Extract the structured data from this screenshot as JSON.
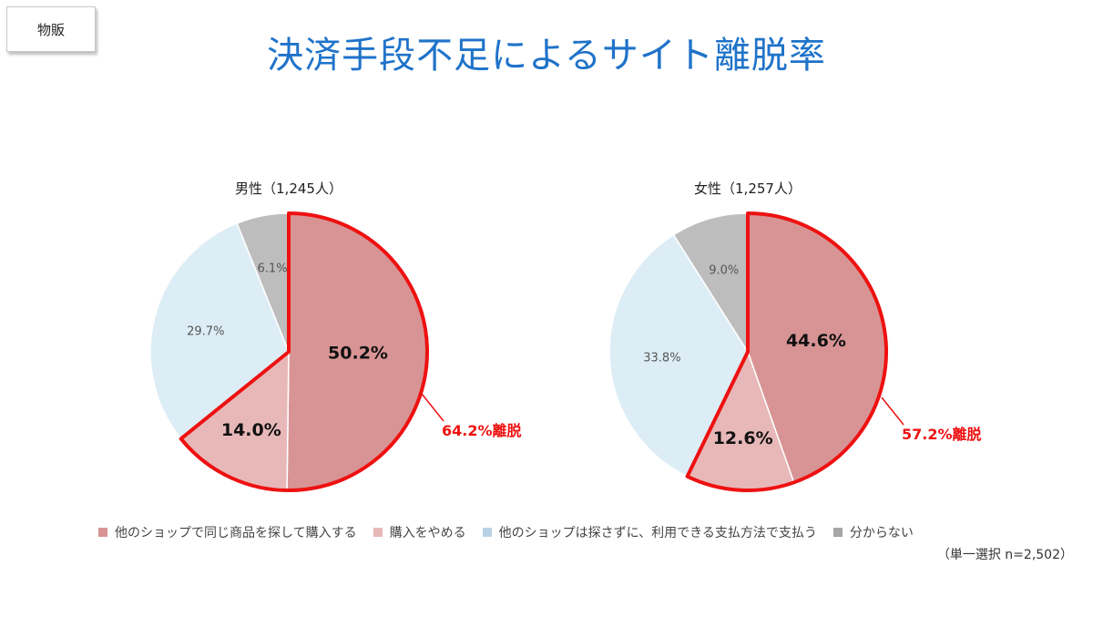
{
  "tag_label": "物販",
  "title": "決済手段不足によるサイト離脱率",
  "note": "（単一選択 n=2,502）",
  "colors": {
    "accent_title": "#1f73c9",
    "highlight": "#ee1111"
  },
  "legend": [
    {
      "label": "他のショップで同じ商品を探して購入する",
      "color": "#d89494"
    },
    {
      "label": "購入をやめる",
      "color": "#e8b8b8"
    },
    {
      "label": "他のショップは探さずに、利用できる支払方法で支払う",
      "color": "#b9d3e6"
    },
    {
      "label": "分からない",
      "color": "#a6a6a6"
    }
  ],
  "chart_data": [
    {
      "type": "pie",
      "title": "男性（1,245人）",
      "labels": [
        "他のショップで同じ商品を探して購入する",
        "購入をやめる",
        "他のショップは探さずに、利用できる支払方法で支払う",
        "分からない"
      ],
      "values": [
        50.2,
        14.0,
        29.7,
        6.1
      ],
      "value_labels": [
        "50.2%",
        "14.0%",
        "29.7%",
        "6.1%"
      ],
      "colors": [
        "#d89494",
        "#e8b8b8",
        "#dcedf5",
        "#bdbdbd"
      ],
      "highlighted_slices": [
        0,
        1
      ],
      "callout": "64.2%離脱"
    },
    {
      "type": "pie",
      "title": "女性（1,257人）",
      "labels": [
        "他のショップで同じ商品を探して購入する",
        "購入をやめる",
        "他のショップは探さずに、利用できる支払方法で支払う",
        "分からない"
      ],
      "values": [
        44.6,
        12.6,
        33.8,
        9.0
      ],
      "value_labels": [
        "44.6%",
        "12.6%",
        "33.8%",
        "9.0%"
      ],
      "colors": [
        "#d89494",
        "#e8b8b8",
        "#dcedf5",
        "#bdbdbd"
      ],
      "highlighted_slices": [
        0,
        1
      ],
      "callout": "57.2%離脱"
    }
  ]
}
